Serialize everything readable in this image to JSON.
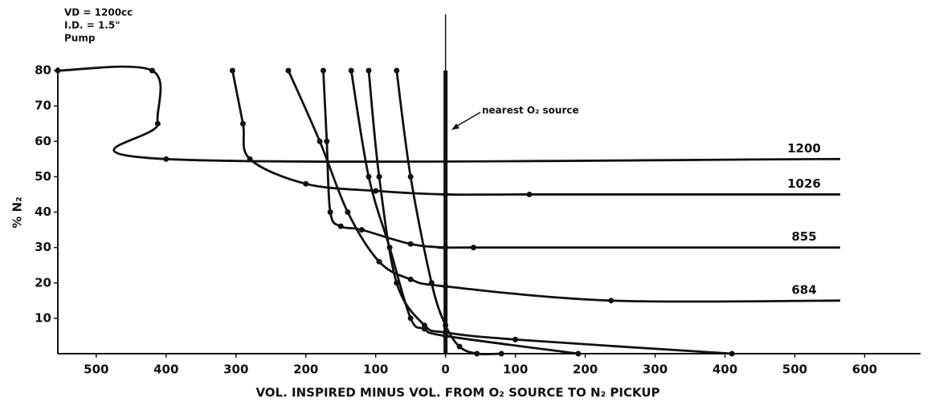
{
  "chart_data": {
    "type": "line",
    "annotations": [
      "VD = 1200cc",
      "I.D. = 1.5\"",
      "Pump",
      "nearest O₂ source"
    ],
    "xlabel": "VOL. INSPIRED MINUS VOL. FROM O₂ SOURCE TO N₂ PICKUP",
    "ylabel": "% N₂",
    "xlim": [
      -555,
      680
    ],
    "ylim": [
      0,
      80
    ],
    "xticks": [
      {
        "value": -500,
        "label": "500"
      },
      {
        "value": -400,
        "label": "400"
      },
      {
        "value": -300,
        "label": "300"
      },
      {
        "value": -200,
        "label": "200"
      },
      {
        "value": -100,
        "label": "100"
      },
      0,
      100,
      200,
      300,
      400,
      500,
      600
    ],
    "yticks": [
      10,
      20,
      30,
      40,
      50,
      60,
      70,
      80
    ],
    "color": "#111111",
    "series": [
      {
        "name": "1200",
        "x": [
          -555,
          -420,
          -412,
          -400,
          565
        ],
        "values": [
          80,
          80,
          65,
          55,
          55
        ]
      },
      {
        "name": "1026",
        "x": [
          -305,
          -290,
          -280,
          -200,
          -100,
          0,
          120,
          565
        ],
        "values": [
          80,
          65,
          55,
          48,
          46,
          45,
          45,
          45
        ]
      },
      {
        "name": "855",
        "x": [
          -175,
          -170,
          -165,
          -150,
          -120,
          -50,
          0,
          40,
          565
        ],
        "values": [
          80,
          60,
          40,
          36,
          35,
          31,
          30,
          30,
          30
        ]
      },
      {
        "name": "684",
        "x": [
          -225,
          -180,
          -140,
          -95,
          -50,
          0,
          237,
          565
        ],
        "values": [
          80,
          60,
          40,
          26,
          21,
          19,
          15,
          15
        ]
      },
      {
        "x": [
          -135,
          -110,
          -80,
          -50,
          -30,
          0,
          190
        ],
        "values": [
          80,
          50,
          30,
          10,
          7,
          5,
          0
        ]
      },
      {
        "x": [
          -110,
          -95,
          -70,
          -30,
          0,
          100,
          410
        ],
        "values": [
          80,
          50,
          20,
          8,
          6,
          4,
          0
        ]
      },
      {
        "x": [
          -70,
          -50,
          -20,
          0,
          20,
          45,
          80
        ],
        "values": [
          80,
          50,
          20,
          8,
          2,
          0,
          0
        ]
      }
    ]
  }
}
